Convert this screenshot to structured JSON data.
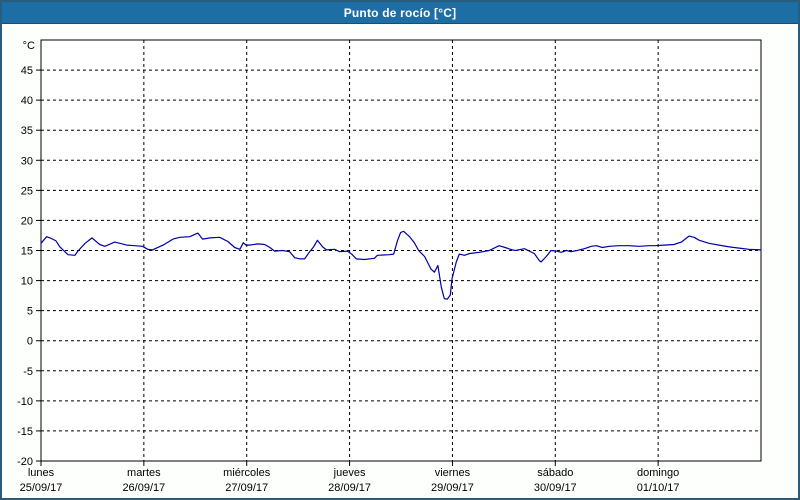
{
  "window": {
    "title": "Punto de rocío [°C]"
  },
  "colors": {
    "frame_border": "#275d7f",
    "titlebar_bg": "#1e6ea6",
    "titlebar_border": "#15506f",
    "titlebar_text": "#ffffff",
    "content_bg": "#fdfffd",
    "plot_bg": "#ffffff",
    "axis": "#000000",
    "grid": "#000000",
    "label": "#000000",
    "line": "#0000aa"
  },
  "chart_data": {
    "type": "line",
    "title": "Punto de rocío [°C]",
    "unit_label": "°C",
    "ylabel": "",
    "xlabel": "",
    "ylim": [
      -20,
      50
    ],
    "yticks": [
      45,
      40,
      35,
      30,
      25,
      20,
      15,
      10,
      5,
      0,
      -5,
      -10,
      -15,
      -20
    ],
    "grid": "dashed",
    "legend_position": "none",
    "x_total_hours": 168,
    "days": [
      {
        "name": "lunes",
        "date": "25/09/17"
      },
      {
        "name": "martes",
        "date": "26/09/17"
      },
      {
        "name": "miércoles",
        "date": "27/09/17"
      },
      {
        "name": "jueves",
        "date": "28/09/17"
      },
      {
        "name": "viernes",
        "date": "29/09/17"
      },
      {
        "name": "sábado",
        "date": "30/09/17"
      },
      {
        "name": "domingo",
        "date": "01/10/17"
      }
    ],
    "series": [
      {
        "name": "Punto de rocío",
        "color": "#0000aa",
        "points": [
          [
            0,
            16.2
          ],
          [
            1.3,
            17.3
          ],
          [
            2.1,
            17.1
          ],
          [
            3.5,
            16.6
          ],
          [
            4.4,
            15.6
          ],
          [
            6.3,
            14.3
          ],
          [
            7.9,
            14.2
          ],
          [
            8.6,
            14.9
          ],
          [
            10.3,
            16.2
          ],
          [
            11.9,
            17.1
          ],
          [
            13.7,
            16.0
          ],
          [
            14.9,
            15.7
          ],
          [
            17.2,
            16.4
          ],
          [
            18.4,
            16.2
          ],
          [
            20,
            15.9
          ],
          [
            21.9,
            15.8
          ],
          [
            23.7,
            15.7
          ],
          [
            24.9,
            15.2
          ],
          [
            26,
            15.1
          ],
          [
            28.5,
            15.9
          ],
          [
            30.8,
            16.9
          ],
          [
            32.4,
            17.2
          ],
          [
            34.7,
            17.3
          ],
          [
            36.6,
            17.9
          ],
          [
            37.7,
            16.9
          ],
          [
            39.4,
            17.1
          ],
          [
            41.7,
            17.2
          ],
          [
            43.6,
            16.5
          ],
          [
            45.2,
            15.5
          ],
          [
            46.4,
            15.2
          ],
          [
            47.2,
            16.3
          ],
          [
            47.8,
            15.9
          ],
          [
            48.7,
            15.9
          ],
          [
            50.6,
            16.1
          ],
          [
            52.2,
            16.0
          ],
          [
            53.4,
            15.5
          ],
          [
            54.5,
            14.9
          ],
          [
            56.4,
            15.0
          ],
          [
            58,
            14.8
          ],
          [
            59.2,
            13.8
          ],
          [
            60.4,
            13.6
          ],
          [
            61.5,
            13.6
          ],
          [
            62.7,
            14.8
          ],
          [
            63.6,
            15.6
          ],
          [
            64.5,
            16.7
          ],
          [
            65.7,
            15.6
          ],
          [
            66.6,
            15.1
          ],
          [
            68.5,
            15.2
          ],
          [
            69.7,
            14.8
          ],
          [
            71.5,
            14.9
          ],
          [
            72.5,
            14.4
          ],
          [
            73.6,
            13.6
          ],
          [
            75.5,
            13.5
          ],
          [
            77.8,
            13.7
          ],
          [
            78.5,
            14.2
          ],
          [
            81.3,
            14.3
          ],
          [
            82.3,
            14.4
          ],
          [
            83.2,
            16.7
          ],
          [
            83.9,
            18.0
          ],
          [
            84.6,
            18.2
          ],
          [
            86,
            17.3
          ],
          [
            87.2,
            16.2
          ],
          [
            88.1,
            15.0
          ],
          [
            89.5,
            14.0
          ],
          [
            91,
            11.9
          ],
          [
            91.8,
            11.4
          ],
          [
            92.6,
            12.5
          ],
          [
            93.4,
            8.9
          ],
          [
            94.1,
            7.0
          ],
          [
            94.8,
            6.9
          ],
          [
            95.5,
            7.6
          ],
          [
            95.9,
            10.3
          ],
          [
            96.9,
            13.1
          ],
          [
            97.6,
            14.4
          ],
          [
            98.8,
            14.2
          ],
          [
            100,
            14.5
          ],
          [
            102.3,
            14.7
          ],
          [
            104.6,
            15.0
          ],
          [
            106.9,
            15.8
          ],
          [
            108.3,
            15.5
          ],
          [
            110,
            15.1
          ],
          [
            110.7,
            15.0
          ],
          [
            112.8,
            15.3
          ],
          [
            115.1,
            14.5
          ],
          [
            116.3,
            13.3
          ],
          [
            116.7,
            13.1
          ],
          [
            117.9,
            14.0
          ],
          [
            119,
            15.0
          ],
          [
            120.2,
            14.9
          ],
          [
            121.4,
            14.7
          ],
          [
            122.6,
            15.0
          ],
          [
            123.7,
            14.8
          ],
          [
            125.1,
            15.0
          ],
          [
            126.8,
            15.3
          ],
          [
            128.4,
            15.7
          ],
          [
            129.6,
            15.8
          ],
          [
            131,
            15.5
          ],
          [
            132.6,
            15.7
          ],
          [
            134.9,
            15.8
          ],
          [
            137.2,
            15.8
          ],
          [
            139.6,
            15.7
          ],
          [
            141.9,
            15.8
          ],
          [
            143.3,
            15.8
          ],
          [
            145.4,
            15.9
          ],
          [
            147.7,
            16.0
          ],
          [
            149.4,
            16.4
          ],
          [
            150.5,
            17.0
          ],
          [
            151.2,
            17.4
          ],
          [
            152.4,
            17.2
          ],
          [
            153.6,
            16.7
          ],
          [
            155.9,
            16.2
          ],
          [
            158.2,
            15.9
          ],
          [
            160.6,
            15.6
          ],
          [
            162.9,
            15.4
          ],
          [
            165.2,
            15.2
          ],
          [
            168,
            15.1
          ]
        ]
      }
    ]
  }
}
